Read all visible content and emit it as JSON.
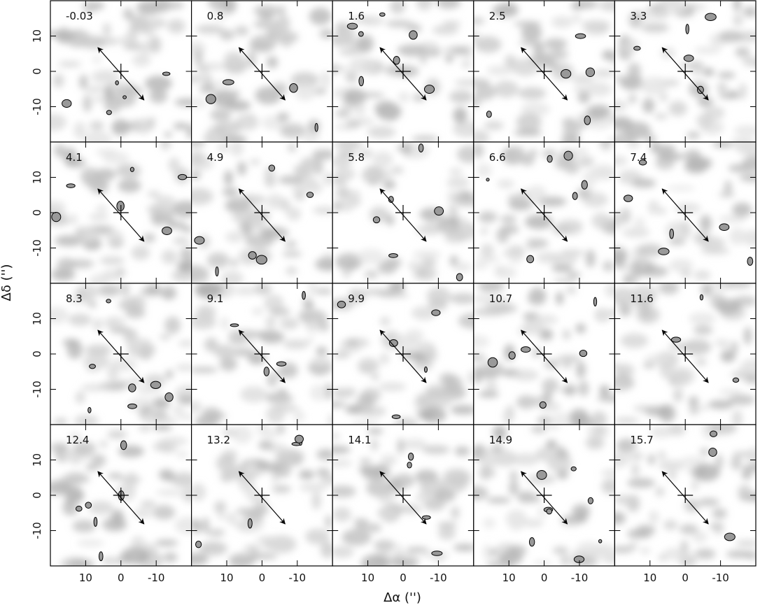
{
  "chart_data": {
    "type": "channel_map",
    "xlabel": "Δα ('')",
    "ylabel": "Δδ ('')",
    "xlim": [
      20,
      -20
    ],
    "ylim": [
      -20,
      20
    ],
    "xticks": [
      10,
      0,
      -10
    ],
    "yticks": [
      -10,
      0,
      10
    ],
    "panels": [
      "-0.03",
      "0.8",
      "1.6",
      "2.5",
      "3.3",
      "4.1",
      "4.9",
      "5.8",
      "6.6",
      "7.4",
      "8.3",
      "9.1",
      "9.9",
      "10.7",
      "11.6",
      "12.4",
      "13.2",
      "14.1",
      "14.9",
      "15.7"
    ]
  }
}
